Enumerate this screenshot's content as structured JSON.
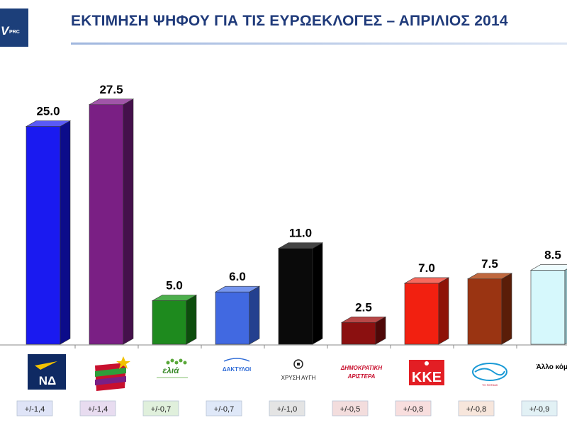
{
  "header": {
    "logo_text": "V",
    "logo_sub": "PRC",
    "title": "ΕΚΤΙΜΗΣΗ ΨΗΦΟΥ ΓΙΑ ΤΙΣ ΕΥΡΩΕΚΛΟΓΕΣ – ΑΠΡΙΛΙΟΣ 2014"
  },
  "chart_data": {
    "type": "bar",
    "title": "ΕΚΤΙΜΗΣΗ ΨΗΦΟΥ ΓΙΑ ΤΙΣ ΕΥΡΩΕΚΛΟΓΕΣ – ΑΠΡΙΛΙΟΣ 2014",
    "ylim": [
      0,
      30
    ],
    "grid": false,
    "legend": "none",
    "bars": [
      {
        "party": "nd",
        "logo_text": "ΝΔ",
        "value_label": "25.0",
        "value": 25.0,
        "moe": "+/-1,4",
        "color": "#1a1af0",
        "side": "#0c0c8a",
        "top": "#5a5af5",
        "moe_bg": "#dfe4f7"
      },
      {
        "party": "syriza",
        "logo_text": "",
        "value_label": "27.5",
        "value": 27.5,
        "moe": "+/-1,4",
        "color": "#7a1f84",
        "side": "#44104b",
        "top": "#a055a8",
        "moe_bg": "#e8dcf0"
      },
      {
        "party": "elia",
        "logo_text": "ελιά",
        "value_label": "5.0",
        "value": 5.0,
        "moe": "+/-0,7",
        "color": "#1e8a1e",
        "side": "#0d4d0d",
        "top": "#4caf4c",
        "moe_bg": "#e0f0dc"
      },
      {
        "party": "dimiourgia",
        "logo_text": "ΔΑΚΤΥΛΟΙ",
        "value_label": "6.0",
        "value": 6.0,
        "moe": "+/-0,7",
        "color": "#4169e1",
        "side": "#23408f",
        "top": "#7595ee",
        "moe_bg": "#dfe8f8"
      },
      {
        "party": "xa",
        "logo_text": "ΧΡΥΣΗ ΑΥΓΗ",
        "value_label": "11.0",
        "value": 11.0,
        "moe": "+/-1,0",
        "color": "#0a0a0a",
        "side": "#000000",
        "top": "#444444",
        "moe_bg": "#e4e4e4"
      },
      {
        "party": "dimar",
        "logo_text": "ΔΗΜΟΚΡΑΤΙΚΗ ΑΡΙΣΤΕΡΑ",
        "value_label": "2.5",
        "value": 2.5,
        "moe": "+/-0,5",
        "color": "#8b1010",
        "side": "#4f0808",
        "top": "#b84848",
        "moe_bg": "#f3dddd"
      },
      {
        "party": "kke",
        "logo_text": "ΚΚΕ",
        "value_label": "7.0",
        "value": 7.0,
        "moe": "+/-0,8",
        "color": "#f22010",
        "side": "#8e1208",
        "top": "#f66a5e",
        "moe_bg": "#f8dede"
      },
      {
        "party": "potami",
        "logo_text": "ΤΟ ΠΟΤΑΜΙ",
        "value_label": "7.5",
        "value": 7.5,
        "moe": "+/-0,8",
        "color": "#9a3412",
        "side": "#5a1d08",
        "top": "#c0683f",
        "moe_bg": "#f7e6dc"
      },
      {
        "party": "other",
        "logo_text": "Άλλο κόμμα",
        "value_label": "8.5",
        "value": 8.5,
        "moe": "+/-0,9",
        "color": "#d6f8fc",
        "side": "#8fb7bd",
        "top": "#eefcfe",
        "moe_bg": "#e2f1f5"
      }
    ]
  }
}
